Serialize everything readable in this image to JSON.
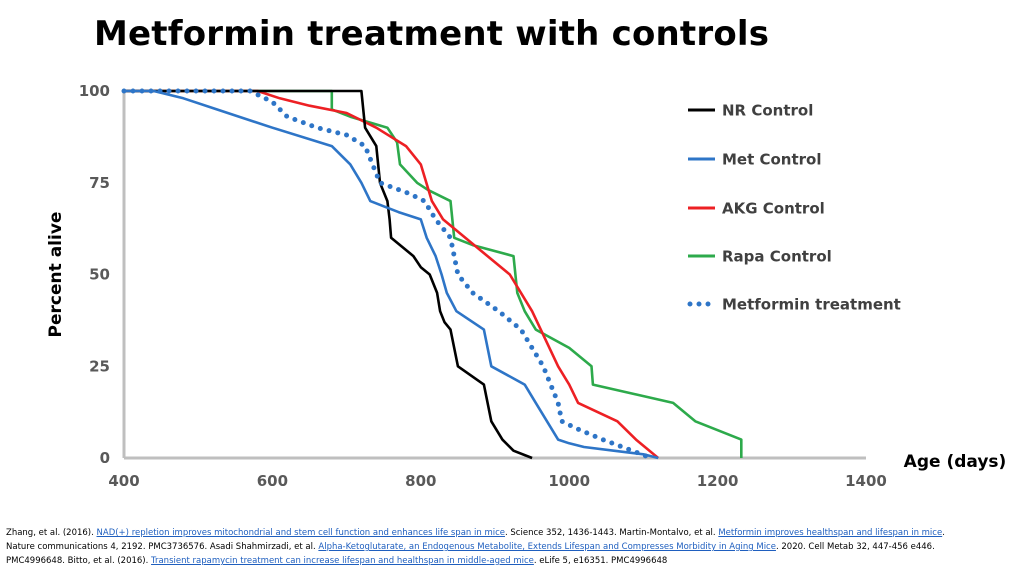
{
  "slide": {
    "title": "Metformin treatment with controls"
  },
  "chart_data": {
    "type": "line",
    "title": "Metformin treatment with controls",
    "xlabel": "Age (days)",
    "ylabel": "Percent alive",
    "xlim": [
      400,
      1400
    ],
    "ylim": [
      0,
      100
    ],
    "xticks": [
      400,
      600,
      800,
      1000,
      1200,
      1400
    ],
    "yticks": [
      0,
      25,
      50,
      75,
      100
    ],
    "grid": false,
    "legend_position": "right",
    "series": [
      {
        "name": "NR Control",
        "color": "#000000",
        "style": "solid",
        "points": [
          [
            400,
            100
          ],
          [
            720,
            100
          ],
          [
            725,
            90
          ],
          [
            740,
            85
          ],
          [
            745,
            75
          ],
          [
            755,
            70
          ],
          [
            758,
            65
          ],
          [
            760,
            60
          ],
          [
            790,
            55
          ],
          [
            800,
            52
          ],
          [
            812,
            50
          ],
          [
            822,
            45
          ],
          [
            826,
            40
          ],
          [
            832,
            37
          ],
          [
            840,
            35
          ],
          [
            850,
            25
          ],
          [
            885,
            20
          ],
          [
            895,
            10
          ],
          [
            910,
            5
          ],
          [
            925,
            2
          ],
          [
            950,
            0
          ]
        ]
      },
      {
        "name": "Met Control",
        "color": "#2E75C7",
        "style": "solid",
        "points": [
          [
            400,
            100
          ],
          [
            440,
            100
          ],
          [
            480,
            98
          ],
          [
            525,
            95
          ],
          [
            600,
            90
          ],
          [
            680,
            85
          ],
          [
            705,
            80
          ],
          [
            720,
            75
          ],
          [
            732,
            70
          ],
          [
            770,
            67
          ],
          [
            800,
            65
          ],
          [
            808,
            60
          ],
          [
            820,
            55
          ],
          [
            828,
            50
          ],
          [
            835,
            45
          ],
          [
            848,
            40
          ],
          [
            885,
            35
          ],
          [
            895,
            25
          ],
          [
            940,
            20
          ],
          [
            955,
            15
          ],
          [
            985,
            5
          ],
          [
            1000,
            4
          ],
          [
            1020,
            3
          ],
          [
            1060,
            2
          ],
          [
            1100,
            1
          ],
          [
            1120,
            0
          ]
        ]
      },
      {
        "name": "AKG Control",
        "color": "#ED2024",
        "style": "solid",
        "points": [
          [
            400,
            100
          ],
          [
            580,
            100
          ],
          [
            610,
            98
          ],
          [
            650,
            96
          ],
          [
            700,
            94
          ],
          [
            740,
            90
          ],
          [
            780,
            85
          ],
          [
            800,
            80
          ],
          [
            815,
            70
          ],
          [
            830,
            65
          ],
          [
            860,
            60
          ],
          [
            920,
            50
          ],
          [
            935,
            45
          ],
          [
            950,
            40
          ],
          [
            985,
            25
          ],
          [
            1000,
            20
          ],
          [
            1012,
            15
          ],
          [
            1065,
            10
          ],
          [
            1090,
            5
          ],
          [
            1120,
            0
          ]
        ]
      },
      {
        "name": "Rapa Control",
        "color": "#2DAA4B",
        "style": "solid",
        "points": [
          [
            400,
            100
          ],
          [
            680,
            100
          ],
          [
            680,
            95
          ],
          [
            705,
            93
          ],
          [
            755,
            90
          ],
          [
            768,
            86
          ],
          [
            772,
            80
          ],
          [
            795,
            75
          ],
          [
            810,
            73
          ],
          [
            840,
            70
          ],
          [
            845,
            60
          ],
          [
            870,
            58
          ],
          [
            925,
            55
          ],
          [
            930,
            45
          ],
          [
            940,
            40
          ],
          [
            955,
            35
          ],
          [
            1000,
            30
          ],
          [
            1030,
            25
          ],
          [
            1032,
            20
          ],
          [
            1140,
            15
          ],
          [
            1170,
            10
          ],
          [
            1232,
            5
          ],
          [
            1232,
            0
          ]
        ]
      },
      {
        "name": "Metformin treatment",
        "color": "#2E75C7",
        "style": "dotted",
        "points": [
          [
            400,
            100
          ],
          [
            570,
            100
          ],
          [
            600,
            97
          ],
          [
            620,
            93
          ],
          [
            660,
            90
          ],
          [
            700,
            88
          ],
          [
            725,
            85
          ],
          [
            745,
            75
          ],
          [
            785,
            72
          ],
          [
            805,
            70
          ],
          [
            820,
            65
          ],
          [
            840,
            60
          ],
          [
            845,
            55
          ],
          [
            850,
            50
          ],
          [
            870,
            45
          ],
          [
            905,
            40
          ],
          [
            935,
            35
          ],
          [
            965,
            25
          ],
          [
            985,
            15
          ],
          [
            990,
            10
          ],
          [
            1010,
            8
          ],
          [
            1045,
            5
          ],
          [
            1085,
            2
          ],
          [
            1110,
            0
          ]
        ]
      }
    ]
  },
  "references": {
    "line1": [
      {
        "text": "Zhang, et al. (2016). ",
        "link": false
      },
      {
        "text": "NAD(+) repletion improves mitochondrial and stem cell function and enhances life span in mice",
        "link": true
      },
      {
        "text": ". Science 352, 1436-1443. Martin-Montalvo, et al. ",
        "link": false
      },
      {
        "text": "Metformin improves healthspan and lifespan in mice",
        "link": true
      },
      {
        "text": ".",
        "link": false
      }
    ],
    "line2": [
      {
        "text": "Nature communications 4, 2192. PMC3736576. Asadi Shahmirzadi, et al. ",
        "link": false
      },
      {
        "text": "Alpha-Ketoglutarate, an Endogenous Metabolite, Extends Lifespan and Compresses Morbidity in Aging Mice",
        "link": true
      },
      {
        "text": ". 2020. Cell Metab 32, 447-456 e446.",
        "link": false
      }
    ],
    "line3": [
      {
        "text": "PMC4996648. Bitto, et al. (2016). ",
        "link": false
      },
      {
        "text": "Transient rapamycin treatment can increase lifespan and healthspan in middle-aged mice",
        "link": true
      },
      {
        "text": ". eLife 5, e16351. PMC4996648",
        "link": false
      }
    ]
  }
}
